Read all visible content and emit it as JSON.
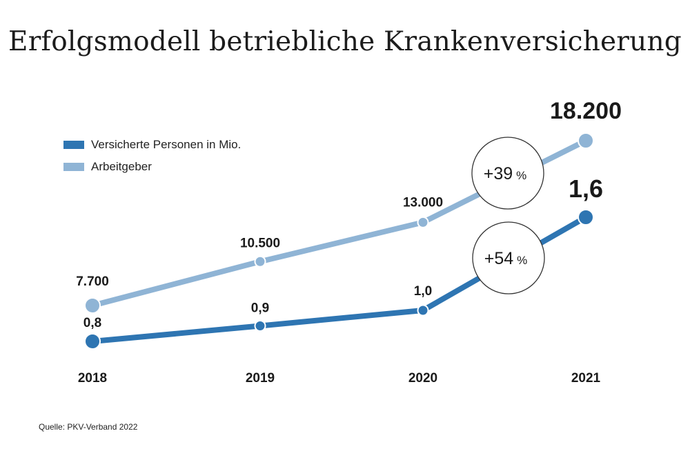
{
  "title": "Erfolgsmodell betriebliche Krankenversicherung",
  "source": "Quelle: PKV-Verband 2022",
  "legend": {
    "items": [
      {
        "label": "Versicherte Personen in Mio.",
        "color": "#2e75b2"
      },
      {
        "label": "Arbeitgeber",
        "color": "#8fb4d5"
      }
    ]
  },
  "chart_data": {
    "type": "line",
    "title": "Erfolgsmodell betriebliche Krankenversicherung",
    "x": [
      "2018",
      "2019",
      "2020",
      "2021"
    ],
    "series": [
      {
        "name": "Arbeitgeber",
        "color": "#8fb4d5",
        "values": [
          7700,
          10500,
          13000,
          18200
        ],
        "labels": [
          "7.700",
          "10.500",
          "13.000",
          "18.200"
        ]
      },
      {
        "name": "Versicherte Personen in Mio.",
        "color": "#2e75b2",
        "values": [
          0.8,
          0.9,
          1.0,
          1.6
        ],
        "labels": [
          "0,8",
          "0,9",
          "1,0",
          "1,6"
        ]
      }
    ],
    "annotations": [
      {
        "series": "Arbeitgeber",
        "number": "+39",
        "unit": "%"
      },
      {
        "series": "Versicherte Personen in Mio.",
        "number": "+54",
        "unit": "%"
      }
    ],
    "grid": false,
    "legend_position": "top-left"
  }
}
